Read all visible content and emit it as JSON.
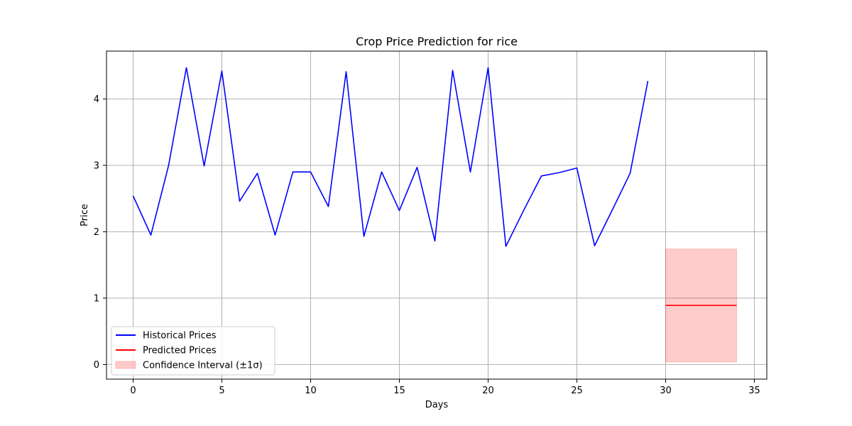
{
  "chart_data": {
    "type": "line",
    "title": "Crop Price Prediction for rice",
    "xlabel": "Days",
    "ylabel": "Price",
    "xlim": [
      -1.5,
      35.7
    ],
    "ylim": [
      -0.22,
      4.72
    ],
    "xticks": [
      0,
      5,
      10,
      15,
      20,
      25,
      30,
      35
    ],
    "yticks": [
      0,
      1,
      2,
      3,
      4
    ],
    "grid": true,
    "legend_position": "lower-left",
    "series": [
      {
        "name": "Historical Prices",
        "color": "#0000ff",
        "x": [
          0,
          1,
          2,
          3,
          4,
          5,
          6,
          7,
          8,
          9,
          10,
          11,
          12,
          13,
          14,
          15,
          16,
          17,
          18,
          19,
          20,
          21,
          22,
          23,
          24,
          25,
          26,
          27,
          28,
          29
        ],
        "values": [
          2.54,
          1.95,
          3.0,
          4.47,
          2.99,
          4.42,
          2.46,
          2.88,
          1.95,
          2.9,
          2.9,
          2.38,
          4.41,
          1.93,
          2.9,
          2.32,
          2.97,
          1.86,
          4.43,
          2.9,
          4.47,
          1.78,
          2.32,
          2.84,
          2.89,
          2.96,
          1.79,
          2.33,
          2.88,
          4.27
        ]
      },
      {
        "name": "Predicted Prices",
        "color": "#ff0000",
        "x": [
          30,
          31,
          32,
          33,
          34
        ],
        "values": [
          0.89,
          0.89,
          0.89,
          0.89,
          0.89
        ]
      }
    ],
    "confidence_interval": {
      "name": "Confidence Interval (±1σ)",
      "color": "#ff0000",
      "x": [
        30,
        34
      ],
      "lower": 0.04,
      "upper": 1.74
    }
  }
}
